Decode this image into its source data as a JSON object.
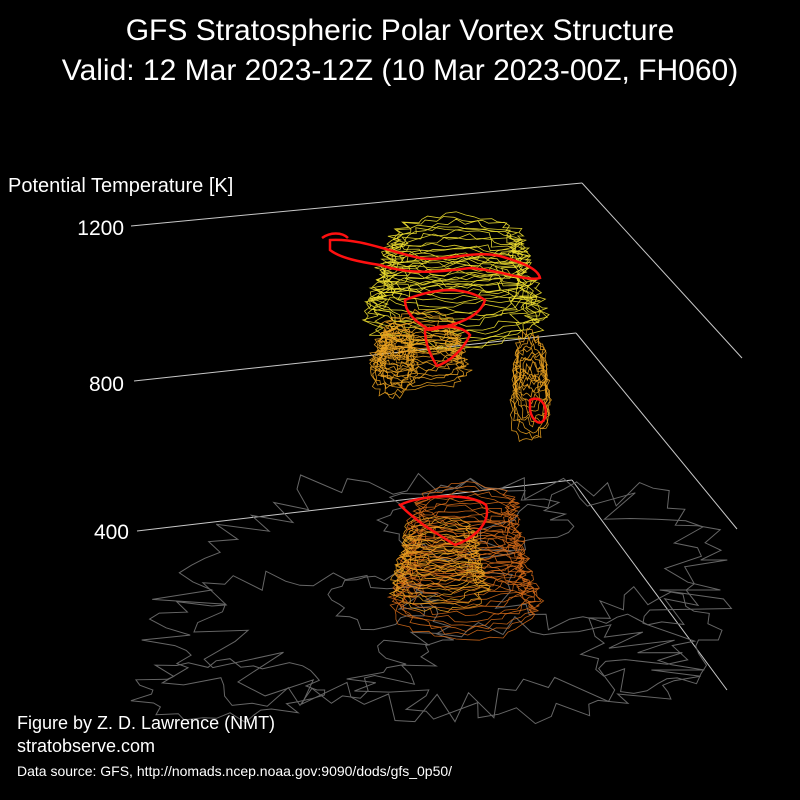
{
  "title": {
    "line1": "GFS Stratospheric Polar Vortex Structure",
    "line2": "Valid: 12 Mar 2023-12Z  (10 Mar 2023-00Z, FH060)"
  },
  "chart_data": {
    "type": "3d-isosurface",
    "zlabel": "Potential Temperature [K]",
    "z_ticks": [
      1200,
      800,
      400
    ],
    "z_tick_labels": [
      "1200",
      "800",
      "400"
    ],
    "grid": true,
    "background": "#000000",
    "colors": {
      "upper_layers": "#f0e030",
      "middle_layers": "#e8a020",
      "lower_layers": "#d06818",
      "highlight_contour": "#ff1010",
      "coastlines": "#666666",
      "axes_lines": "#c8c8c8"
    }
  },
  "credits": {
    "author": "Figure by Z. D. Lawrence (NMT)",
    "site": "stratobserve.com",
    "source": "Data source: GFS, http://nomads.ncep.noaa.gov:9090/dods/gfs_0p50/"
  }
}
